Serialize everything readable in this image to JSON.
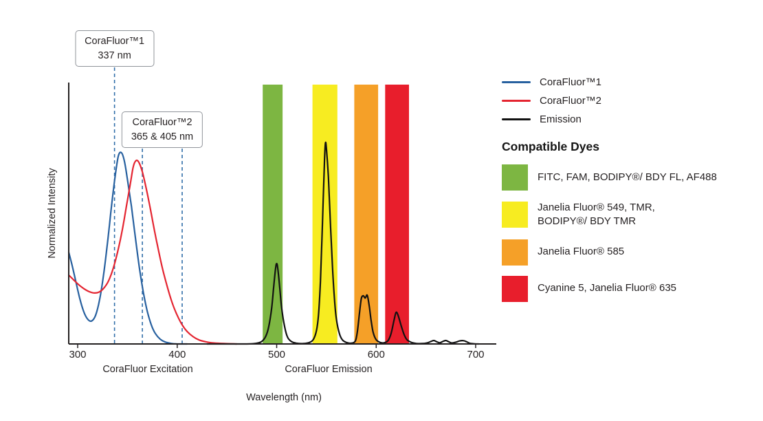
{
  "colors": {
    "axis": "#231f20",
    "dashed": "#2f6da8",
    "corafluor1": "#27609f",
    "corafluor2": "#e42430",
    "emission": "#111111",
    "green_band": "#7db642",
    "yellow_band": "#f7ec21",
    "orange_band": "#f5a028",
    "red_band": "#e81e2c"
  },
  "annotations": [
    {
      "title": "CoraFluor™1",
      "subtitle": "337 nm",
      "lines_nm": [
        337
      ]
    },
    {
      "title": "CoraFluor™2",
      "subtitle": "365 & 405 nm",
      "lines_nm": [
        365,
        405
      ]
    }
  ],
  "legend": {
    "items": [
      {
        "label": "CoraFluor™1",
        "color": "#27609f"
      },
      {
        "label": "CoraFluor™2",
        "color": "#e42430"
      },
      {
        "label": "Emission",
        "color": "#111111"
      }
    ]
  },
  "dyes": {
    "heading": "Compatible Dyes",
    "items": [
      {
        "label": "FITC, FAM, BODIPY®/ BDY FL, AF488",
        "color": "#7db642"
      },
      {
        "label": "Janelia Fluor® 549, TMR,\nBODIPY®/ BDY TMR",
        "color": "#f7ec21"
      },
      {
        "label": "Janelia Fluor® 585",
        "color": "#f5a028"
      },
      {
        "label": "Cyanine 5, Janelia Fluor® 635",
        "color": "#e81e2c"
      }
    ]
  },
  "axis_labels": {
    "y": "Normalized Intensity",
    "x_excitation": "CoraFluor Excitation",
    "x_emission": "CoraFluor Emission",
    "x_main": "Wavelength (nm)"
  },
  "chart_data": {
    "type": "line",
    "title": "CoraFluor excitation and emission spectra with compatible dye emission windows",
    "xlabel": "Wavelength (nm)",
    "ylabel": "Normalized Intensity",
    "xlim": [
      291,
      722
    ],
    "ylim": [
      0,
      1.1
    ],
    "x_ticks": [
      300,
      400,
      500,
      600,
      700
    ],
    "y_ticks": [],
    "grid": false,
    "legend_position": "top-right",
    "excitation_lines_nm": [
      337,
      365,
      405
    ],
    "bands": [
      {
        "name": "green",
        "range_nm": [
          486,
          506
        ],
        "color": "#7db642",
        "dyes": "FITC, FAM, BODIPY®/ BDY FL, AF488"
      },
      {
        "name": "yellow",
        "range_nm": [
          536,
          561
        ],
        "color": "#f7ec21",
        "dyes": "Janelia Fluor® 549, TMR, BODIPY®/ BDY TMR"
      },
      {
        "name": "orange",
        "range_nm": [
          578,
          602
        ],
        "color": "#f5a028",
        "dyes": "Janelia Fluor® 585"
      },
      {
        "name": "red",
        "range_nm": [
          609,
          633
        ],
        "color": "#e81e2c",
        "dyes": "Cyanine 5, Janelia Fluor® 635"
      }
    ],
    "series": [
      {
        "id": "corafluor1",
        "name": "CoraFluor™1 excitation",
        "color": "#27609f",
        "points": [
          [
            291,
            0.48
          ],
          [
            294,
            0.42
          ],
          [
            298,
            0.33
          ],
          [
            302,
            0.24
          ],
          [
            306,
            0.17
          ],
          [
            310,
            0.13
          ],
          [
            314,
            0.12
          ],
          [
            318,
            0.15
          ],
          [
            322,
            0.23
          ],
          [
            326,
            0.36
          ],
          [
            330,
            0.53
          ],
          [
            334,
            0.72
          ],
          [
            338,
            0.89
          ],
          [
            341,
            0.985
          ],
          [
            344,
            1.0
          ],
          [
            347,
            0.955
          ],
          [
            350,
            0.86
          ],
          [
            354,
            0.72
          ],
          [
            358,
            0.555
          ],
          [
            362,
            0.4
          ],
          [
            366,
            0.27
          ],
          [
            370,
            0.17
          ],
          [
            374,
            0.1
          ],
          [
            378,
            0.055
          ],
          [
            383,
            0.025
          ],
          [
            388,
            0.01
          ],
          [
            394,
            0.003
          ],
          [
            400,
            0.0
          ],
          [
            410,
            0.0
          ]
        ]
      },
      {
        "id": "corafluor2",
        "name": "CoraFluor™2 excitation",
        "color": "#e42430",
        "points": [
          [
            291,
            0.36
          ],
          [
            296,
            0.335
          ],
          [
            301,
            0.31
          ],
          [
            306,
            0.29
          ],
          [
            311,
            0.275
          ],
          [
            316,
            0.267
          ],
          [
            321,
            0.27
          ],
          [
            326,
            0.29
          ],
          [
            331,
            0.33
          ],
          [
            336,
            0.4
          ],
          [
            341,
            0.5
          ],
          [
            345,
            0.6
          ],
          [
            349,
            0.72
          ],
          [
            353,
            0.84
          ],
          [
            356,
            0.93
          ],
          [
            359,
            0.96
          ],
          [
            362,
            0.945
          ],
          [
            365,
            0.9
          ],
          [
            368,
            0.835
          ],
          [
            372,
            0.735
          ],
          [
            376,
            0.625
          ],
          [
            380,
            0.52
          ],
          [
            385,
            0.4
          ],
          [
            390,
            0.3
          ],
          [
            395,
            0.215
          ],
          [
            400,
            0.15
          ],
          [
            405,
            0.1
          ],
          [
            410,
            0.065
          ],
          [
            416,
            0.038
          ],
          [
            422,
            0.021
          ],
          [
            429,
            0.011
          ],
          [
            437,
            0.005
          ],
          [
            447,
            0.002
          ],
          [
            460,
            0.0
          ]
        ]
      },
      {
        "id": "emission",
        "name": "Emission",
        "color": "#111111",
        "points": [
          [
            430,
            0.0
          ],
          [
            470,
            0.0
          ],
          [
            480,
            0.004
          ],
          [
            485,
            0.013
          ],
          [
            489,
            0.04
          ],
          [
            492,
            0.09
          ],
          [
            495,
            0.19
          ],
          [
            497,
            0.3
          ],
          [
            499,
            0.4
          ],
          [
            500,
            0.42
          ],
          [
            501,
            0.4
          ],
          [
            503,
            0.3
          ],
          [
            505,
            0.19
          ],
          [
            508,
            0.09
          ],
          [
            511,
            0.035
          ],
          [
            515,
            0.012
          ],
          [
            520,
            0.004
          ],
          [
            527,
            0.002
          ],
          [
            533,
            0.008
          ],
          [
            537,
            0.025
          ],
          [
            540,
            0.07
          ],
          [
            542,
            0.15
          ],
          [
            544,
            0.33
          ],
          [
            546,
            0.63
          ],
          [
            548,
            0.95
          ],
          [
            549,
            1.05
          ],
          [
            550,
            1.02
          ],
          [
            552,
            0.87
          ],
          [
            554,
            0.63
          ],
          [
            556,
            0.41
          ],
          [
            558,
            0.24
          ],
          [
            560,
            0.13
          ],
          [
            563,
            0.055
          ],
          [
            566,
            0.022
          ],
          [
            570,
            0.008
          ],
          [
            575,
            0.004
          ],
          [
            579,
            0.015
          ],
          [
            581,
            0.06
          ],
          [
            583,
            0.15
          ],
          [
            585,
            0.235
          ],
          [
            587,
            0.252
          ],
          [
            589,
            0.24
          ],
          [
            591,
            0.255
          ],
          [
            593,
            0.2
          ],
          [
            595,
            0.12
          ],
          [
            597,
            0.06
          ],
          [
            600,
            0.022
          ],
          [
            604,
            0.008
          ],
          [
            608,
            0.006
          ],
          [
            612,
            0.018
          ],
          [
            615,
            0.055
          ],
          [
            618,
            0.125
          ],
          [
            620,
            0.165
          ],
          [
            622,
            0.15
          ],
          [
            625,
            0.098
          ],
          [
            628,
            0.05
          ],
          [
            631,
            0.022
          ],
          [
            635,
            0.009
          ],
          [
            640,
            0.003
          ],
          [
            646,
            0.002
          ],
          [
            651,
            0.005
          ],
          [
            655,
            0.013
          ],
          [
            658,
            0.018
          ],
          [
            661,
            0.011
          ],
          [
            664,
            0.006
          ],
          [
            667,
            0.013
          ],
          [
            670,
            0.018
          ],
          [
            673,
            0.011
          ],
          [
            676,
            0.005
          ],
          [
            680,
            0.009
          ],
          [
            684,
            0.016
          ],
          [
            688,
            0.017
          ],
          [
            691,
            0.011
          ],
          [
            694,
            0.004
          ],
          [
            698,
            0.001
          ],
          [
            703,
            0.0
          ]
        ]
      }
    ]
  }
}
